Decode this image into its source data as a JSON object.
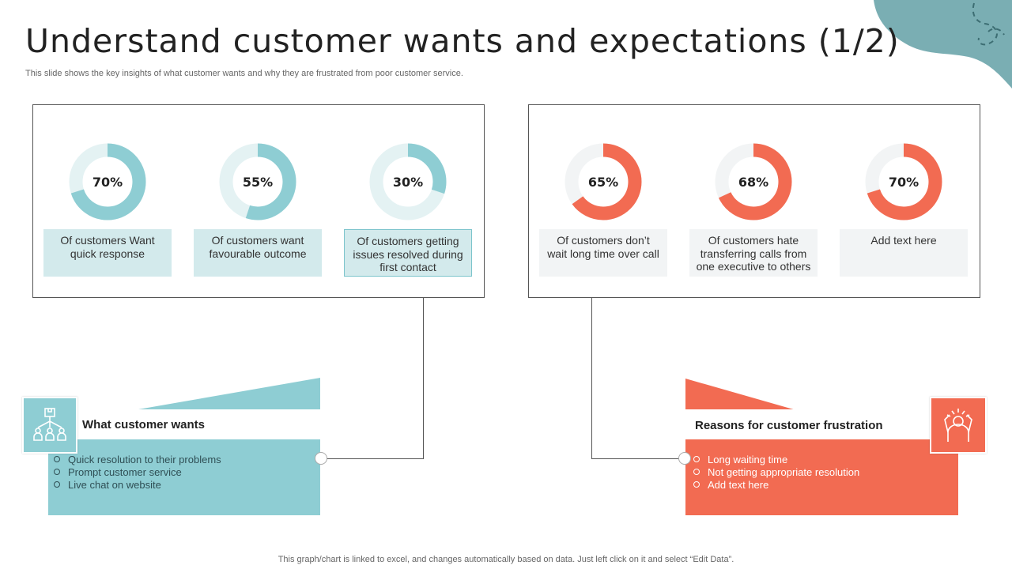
{
  "title": "Understand customer wants and expectations (1/2)",
  "subtitle": "This slide shows the key insights of what customer wants and why they are frustrated from poor customer service.",
  "colors": {
    "teal": "#8ecdd3",
    "teal_track": "#e4f2f3",
    "coral": "#f26b52",
    "coral_track": "#f2f4f5",
    "blob": "#7aaeb3"
  },
  "chart_data": [
    {
      "type": "pie",
      "variant": "donut",
      "group": "wants",
      "items": [
        {
          "value": 70,
          "label": "70%",
          "caption": "Of customers Want quick response"
        },
        {
          "value": 55,
          "label": "55%",
          "caption": "Of customers want favourable outcome"
        },
        {
          "value": 30,
          "label": "30%",
          "caption": "Of customers getting issues resolved during first contact"
        }
      ]
    },
    {
      "type": "pie",
      "variant": "donut",
      "group": "frustration",
      "items": [
        {
          "value": 65,
          "label": "65%",
          "caption": "Of customers don’t wait long time over call"
        },
        {
          "value": 68,
          "label": "68%",
          "caption": "Of customers hate transferring calls from one executive to others"
        },
        {
          "value": 70,
          "label": "70%",
          "caption": "Add text here"
        }
      ]
    }
  ],
  "wants": {
    "title": "What customer wants",
    "icon": "people-network-icon",
    "items": [
      "Quick resolution to their problems",
      "Prompt customer service",
      "Live chat on website"
    ]
  },
  "frustration": {
    "title": "Reasons for customer frustration",
    "icon": "frustrated-person-icon",
    "items": [
      "Long waiting time",
      "Not getting appropriate resolution",
      "Add text here"
    ]
  },
  "footer": "This graph/chart is linked to excel,  and changes automatically based on data. Just left click on it and select “Edit Data”."
}
